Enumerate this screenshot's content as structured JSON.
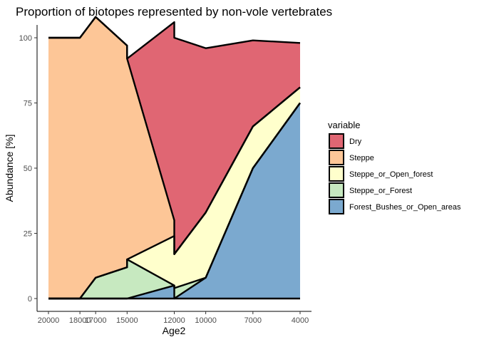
{
  "chart_data": {
    "type": "area",
    "title": "Proportion of biotopes represented by non-vole vertebrates",
    "xlabel": "Age2",
    "ylabel": "Abundance [%]",
    "x_reversed": true,
    "xlim": [
      20000,
      4000
    ],
    "ylim": [
      0,
      100
    ],
    "x_ticks": [
      20000,
      18000,
      17000,
      15000,
      12000,
      10000,
      7000,
      4000
    ],
    "x_tick_labels": [
      "20000",
      "18000",
      "17000",
      "15000",
      "12000",
      "10000",
      "7000",
      "4000"
    ],
    "y_ticks": [
      0,
      25,
      50,
      75,
      100
    ],
    "y_tick_labels": [
      "0",
      "25",
      "50",
      "75",
      "100"
    ],
    "legend_title": "variable",
    "legend_position": "right",
    "grid": false,
    "x": [
      20000,
      18000,
      17000,
      15000,
      15000,
      12000,
      12000,
      10000,
      7000,
      4000
    ],
    "series": [
      {
        "name": "Dry",
        "color": "#e06673",
        "values": [
          0,
          0,
          0,
          0,
          0,
          76,
          83,
          63,
          33,
          17
        ]
      },
      {
        "name": "Steppe",
        "color": "#fdc697",
        "values": [
          100,
          100,
          100,
          85,
          77,
          6,
          0,
          0,
          0,
          0
        ]
      },
      {
        "name": "Steppe_or_Open_forest",
        "color": "#ffffcc",
        "values": [
          0,
          0,
          0,
          0,
          0,
          19,
          13,
          25,
          16,
          6
        ]
      },
      {
        "name": "Steppe_or_Forest",
        "color": "#c7e9c0",
        "values": [
          0,
          0,
          8,
          12,
          15,
          0,
          4,
          0,
          0,
          0
        ]
      },
      {
        "name": "Forest_Bushes_or_Open_areas",
        "color": "#7ba9cf",
        "values": [
          0,
          0,
          0,
          0,
          0,
          5,
          0,
          8,
          50,
          75
        ]
      }
    ]
  }
}
